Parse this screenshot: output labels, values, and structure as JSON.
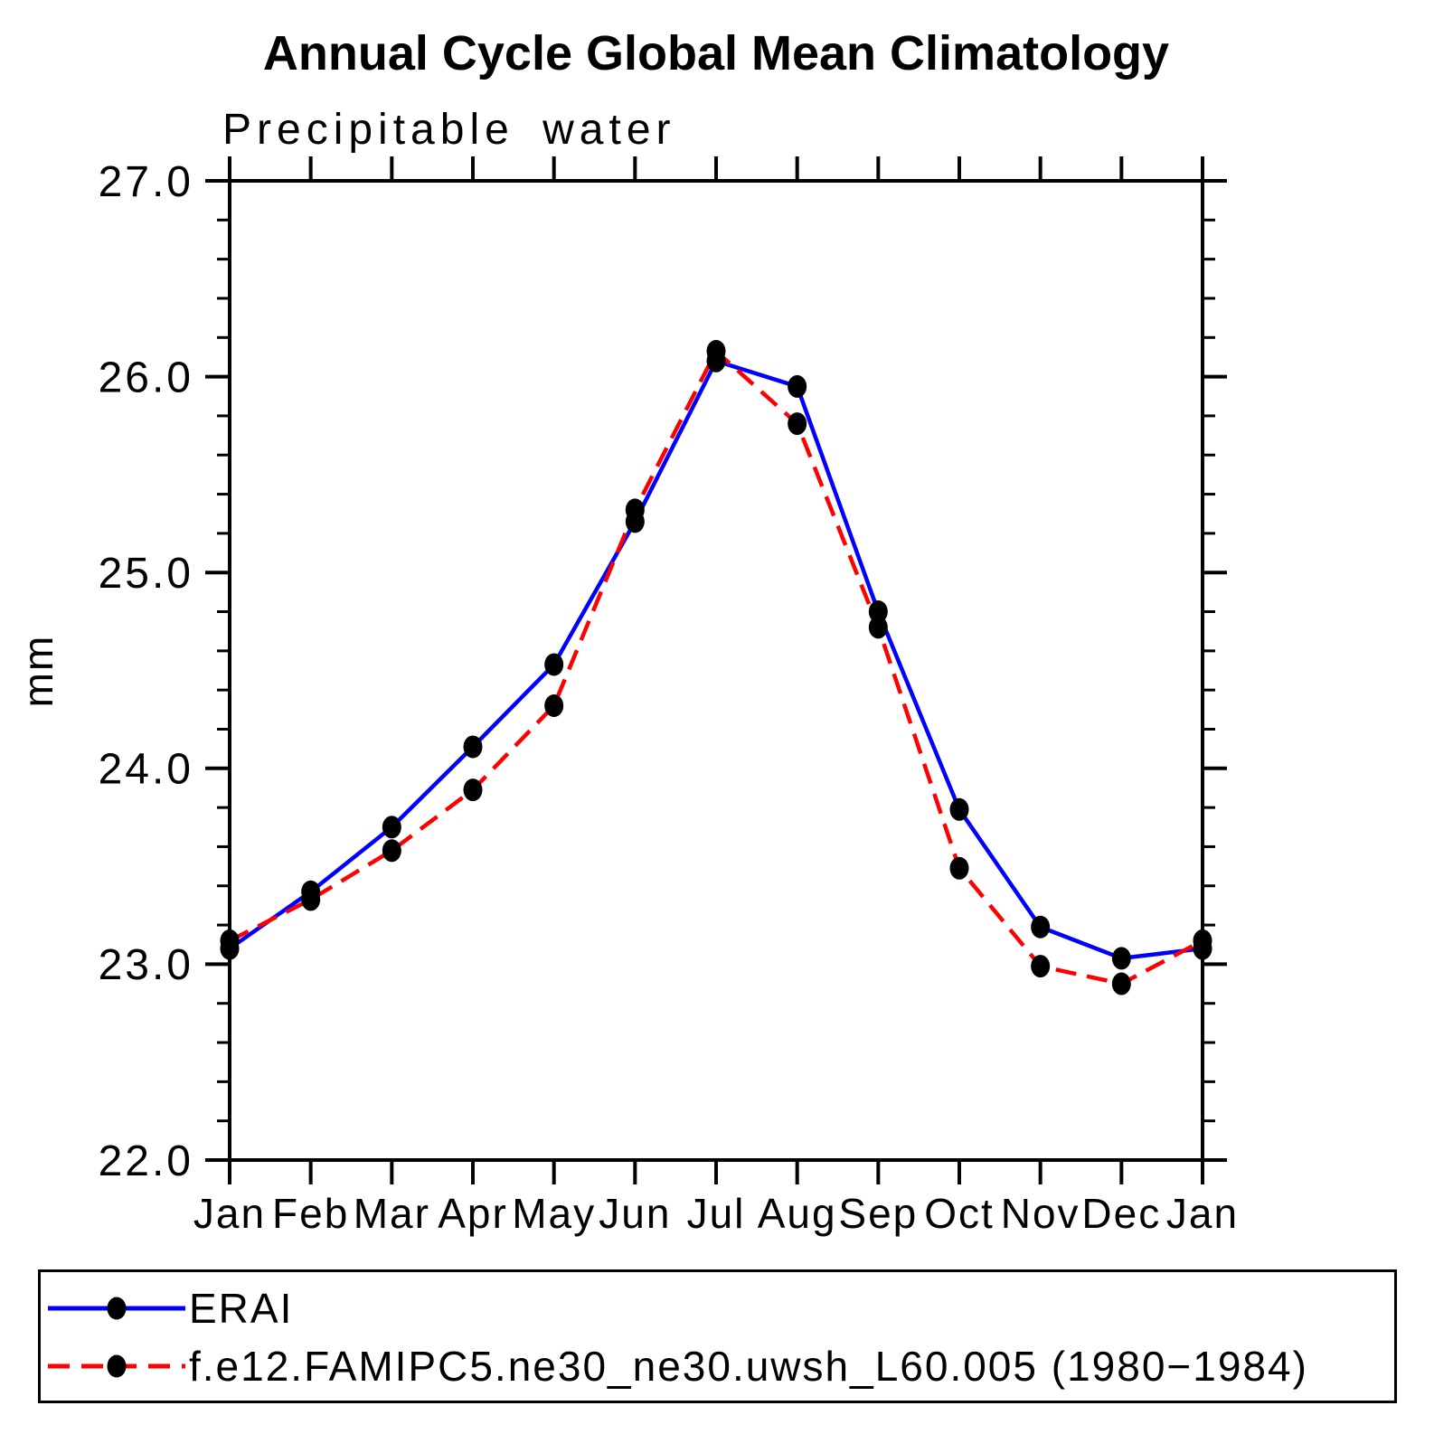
{
  "page": {
    "title": "Annual Cycle Global Mean Climatology",
    "subtitle": "Precipitable water"
  },
  "chart_data": {
    "type": "line",
    "title": "Annual Cycle Global Mean Climatology",
    "subtitle": "Precipitable water",
    "xlabel": "",
    "ylabel": "mm",
    "categories": [
      "Jan",
      "Feb",
      "Mar",
      "Apr",
      "May",
      "Jun",
      "Jul",
      "Aug",
      "Sep",
      "Oct",
      "Nov",
      "Dec",
      "Jan"
    ],
    "ylim": [
      22.0,
      27.0
    ],
    "ytick_major": [
      22.0,
      23.0,
      24.0,
      25.0,
      26.0,
      27.0
    ],
    "ytick_minor_step": 0.2,
    "grid": false,
    "legend_position": "bottom-box",
    "marker_color": "#000000",
    "axis_color": "#000000",
    "series": [
      {
        "name": "ERAI",
        "color": "#0000ff",
        "style": "solid",
        "marker": "black-dot",
        "values": [
          23.08,
          23.37,
          23.7,
          24.11,
          24.53,
          25.26,
          26.08,
          25.95,
          24.8,
          23.79,
          23.19,
          23.03,
          23.08
        ]
      },
      {
        "name": "f.e12.FAMIPC5.ne30_ne30.uwsh_L60.005 (1980−1984)",
        "color": "#ff0000",
        "style": "dashed",
        "marker": "black-dot",
        "values": [
          23.12,
          23.33,
          23.58,
          23.89,
          24.32,
          25.32,
          26.13,
          25.76,
          24.72,
          23.49,
          22.99,
          22.9,
          23.12
        ]
      }
    ]
  }
}
